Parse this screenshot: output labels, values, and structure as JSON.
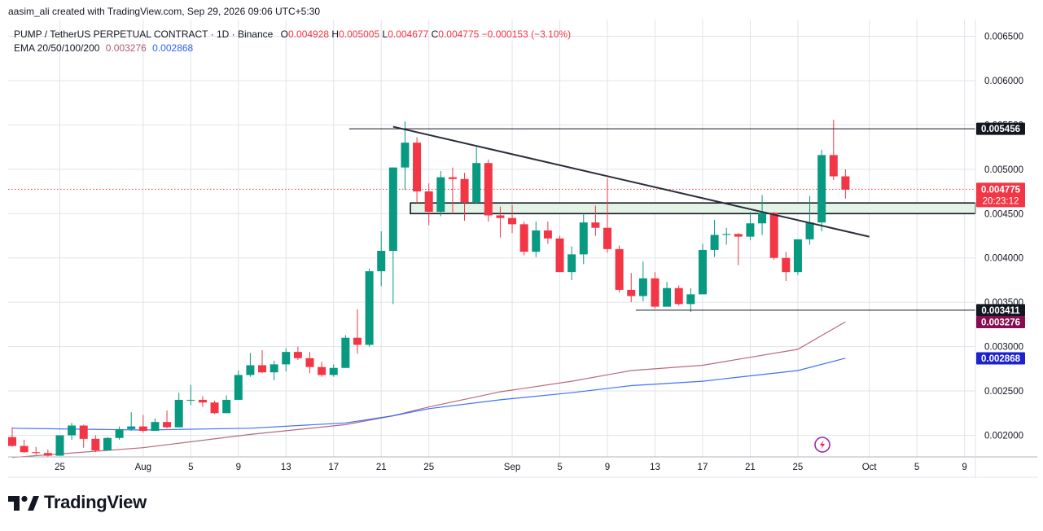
{
  "colors": {
    "up": "#089981",
    "down": "#f23645",
    "ema50": "#2962ff",
    "ema200": "#b05a6d",
    "grid": "#e0e3eb",
    "text": "#131722",
    "zone_fill": "#e3f4e6",
    "resistance_label_bg": "#131722",
    "last_price_bg": "#f23645",
    "ema200_label_bg": "#880e4f",
    "ema50_label_bg": "#1e22cc"
  },
  "header": {
    "attribution": "aasim_ali created with TradingView.com, Sep 29, 2026 09:06 UTC+5:30",
    "symbol": "PUMP / TetherUS PERPETUAL CONTRACT · 1D · Binance",
    "ohlc": [
      {
        "k": "O",
        "v": "0.004928"
      },
      {
        "k": "H",
        "v": "0.005005"
      },
      {
        "k": "L",
        "v": "0.004677"
      },
      {
        "k": "C",
        "v": "0.004775"
      }
    ],
    "change": "−0.000153 (−3.10%)",
    "indicator": "EMA 20/50/100/200",
    "ema_values": [
      {
        "v": "0.003276",
        "color": "#b05a6d"
      },
      {
        "v": "0.002868",
        "color": "#2962ff"
      }
    ]
  },
  "brand": {
    "name": "TradingView",
    "logo_icon": "tradingview-logo-icon"
  },
  "chart_data": {
    "type": "candlestick",
    "interval": "1D",
    "y_axis": {
      "ticks": [
        "0.006500",
        "0.006000",
        "0.005500",
        "0.005000",
        "0.004500",
        "0.004000",
        "0.003500",
        "0.003000",
        "0.002500",
        "0.002000"
      ],
      "range": [
        0.00175,
        0.0066
      ]
    },
    "x_axis": {
      "labels": [
        "25",
        "Aug",
        "5",
        "9",
        "13",
        "17",
        "21",
        "25",
        "Sep",
        "5",
        "9",
        "13",
        "17",
        "21",
        "25",
        "Oct",
        "5",
        "9"
      ],
      "label_dates": [
        "2026-07-25",
        "2026-08-01",
        "2026-08-05",
        "2026-08-09",
        "2026-08-13",
        "2026-08-17",
        "2026-08-21",
        "2026-08-25",
        "2026-09-01",
        "2026-09-05",
        "2026-09-09",
        "2026-09-13",
        "2026-09-17",
        "2026-09-21",
        "2026-09-25",
        "2026-10-01",
        "2026-10-05",
        "2026-10-09"
      ],
      "start_date": "2026-07-21",
      "end_date": "2026-10-12"
    },
    "candles": [
      {
        "d": "2026-07-21",
        "o": 0.00198,
        "h": 0.00209,
        "l": 0.00187,
        "c": 0.00188
      },
      {
        "d": "2026-07-22",
        "o": 0.00188,
        "h": 0.00195,
        "l": 0.0018,
        "c": 0.00181
      },
      {
        "d": "2026-07-23",
        "o": 0.00181,
        "h": 0.00187,
        "l": 0.00178,
        "c": 0.0018
      },
      {
        "d": "2026-07-24",
        "o": 0.0018,
        "h": 0.00184,
        "l": 0.00176,
        "c": 0.00177
      },
      {
        "d": "2026-07-25",
        "o": 0.00177,
        "h": 0.002,
        "l": 0.00177,
        "c": 0.002
      },
      {
        "d": "2026-07-26",
        "o": 0.002,
        "h": 0.00214,
        "l": 0.00195,
        "c": 0.00211
      },
      {
        "d": "2026-07-27",
        "o": 0.00211,
        "h": 0.00212,
        "l": 0.00186,
        "c": 0.00196
      },
      {
        "d": "2026-07-28",
        "o": 0.00196,
        "h": 0.002,
        "l": 0.00181,
        "c": 0.00183
      },
      {
        "d": "2026-07-29",
        "o": 0.00183,
        "h": 0.00198,
        "l": 0.00183,
        "c": 0.00197
      },
      {
        "d": "2026-07-30",
        "o": 0.00197,
        "h": 0.0021,
        "l": 0.00195,
        "c": 0.00207
      },
      {
        "d": "2026-07-31",
        "o": 0.00207,
        "h": 0.00226,
        "l": 0.00205,
        "c": 0.0021
      },
      {
        "d": "2026-08-01",
        "o": 0.0021,
        "h": 0.00223,
        "l": 0.00203,
        "c": 0.00205
      },
      {
        "d": "2026-08-02",
        "o": 0.00205,
        "h": 0.00219,
        "l": 0.00205,
        "c": 0.00215
      },
      {
        "d": "2026-08-03",
        "o": 0.00215,
        "h": 0.00228,
        "l": 0.00208,
        "c": 0.00209
      },
      {
        "d": "2026-08-04",
        "o": 0.00209,
        "h": 0.00248,
        "l": 0.00209,
        "c": 0.0024
      },
      {
        "d": "2026-08-05",
        "o": 0.0024,
        "h": 0.00257,
        "l": 0.00234,
        "c": 0.0024
      },
      {
        "d": "2026-08-06",
        "o": 0.0024,
        "h": 0.00244,
        "l": 0.00232,
        "c": 0.00237
      },
      {
        "d": "2026-08-07",
        "o": 0.00237,
        "h": 0.00239,
        "l": 0.00224,
        "c": 0.00225
      },
      {
        "d": "2026-08-08",
        "o": 0.00225,
        "h": 0.00245,
        "l": 0.00225,
        "c": 0.0024
      },
      {
        "d": "2026-08-09",
        "o": 0.0024,
        "h": 0.00273,
        "l": 0.0024,
        "c": 0.00268
      },
      {
        "d": "2026-08-10",
        "o": 0.00268,
        "h": 0.00293,
        "l": 0.00266,
        "c": 0.00279
      },
      {
        "d": "2026-08-11",
        "o": 0.00279,
        "h": 0.00296,
        "l": 0.0027,
        "c": 0.00271
      },
      {
        "d": "2026-08-12",
        "o": 0.00271,
        "h": 0.00284,
        "l": 0.00262,
        "c": 0.0028
      },
      {
        "d": "2026-08-13",
        "o": 0.0028,
        "h": 0.00298,
        "l": 0.00272,
        "c": 0.00294
      },
      {
        "d": "2026-08-14",
        "o": 0.00294,
        "h": 0.003,
        "l": 0.00285,
        "c": 0.00287
      },
      {
        "d": "2026-08-15",
        "o": 0.00287,
        "h": 0.00294,
        "l": 0.0027,
        "c": 0.00277
      },
      {
        "d": "2026-08-16",
        "o": 0.00277,
        "h": 0.00283,
        "l": 0.00266,
        "c": 0.00268
      },
      {
        "d": "2026-08-17",
        "o": 0.00268,
        "h": 0.0028,
        "l": 0.00266,
        "c": 0.00276
      },
      {
        "d": "2026-08-18",
        "o": 0.00276,
        "h": 0.00313,
        "l": 0.00276,
        "c": 0.0031
      },
      {
        "d": "2026-08-19",
        "o": 0.0031,
        "h": 0.00342,
        "l": 0.00292,
        "c": 0.00302
      },
      {
        "d": "2026-08-20",
        "o": 0.00302,
        "h": 0.00388,
        "l": 0.003,
        "c": 0.00385
      },
      {
        "d": "2026-08-21",
        "o": 0.00385,
        "h": 0.0043,
        "l": 0.00368,
        "c": 0.00408
      },
      {
        "d": "2026-08-22",
        "o": 0.00408,
        "h": 0.00502,
        "l": 0.00348,
        "c": 0.00502
      },
      {
        "d": "2026-08-23",
        "o": 0.00502,
        "h": 0.00554,
        "l": 0.00477,
        "c": 0.0053
      },
      {
        "d": "2026-08-24",
        "o": 0.0053,
        "h": 0.00536,
        "l": 0.00462,
        "c": 0.00475
      },
      {
        "d": "2026-08-25",
        "o": 0.00475,
        "h": 0.00484,
        "l": 0.00437,
        "c": 0.00452
      },
      {
        "d": "2026-08-26",
        "o": 0.00452,
        "h": 0.00498,
        "l": 0.00447,
        "c": 0.00491
      },
      {
        "d": "2026-08-27",
        "o": 0.00491,
        "h": 0.00502,
        "l": 0.00449,
        "c": 0.00489
      },
      {
        "d": "2026-08-28",
        "o": 0.00489,
        "h": 0.00496,
        "l": 0.00442,
        "c": 0.00463
      },
      {
        "d": "2026-08-29",
        "o": 0.00463,
        "h": 0.00525,
        "l": 0.00461,
        "c": 0.00507
      },
      {
        "d": "2026-08-30",
        "o": 0.00507,
        "h": 0.00511,
        "l": 0.00441,
        "c": 0.00448
      },
      {
        "d": "2026-08-31",
        "o": 0.00448,
        "h": 0.00458,
        "l": 0.00423,
        "c": 0.00445
      },
      {
        "d": "2026-09-01",
        "o": 0.00445,
        "h": 0.0046,
        "l": 0.00428,
        "c": 0.00438
      },
      {
        "d": "2026-09-02",
        "o": 0.00438,
        "h": 0.00441,
        "l": 0.00403,
        "c": 0.00407
      },
      {
        "d": "2026-09-03",
        "o": 0.00407,
        "h": 0.00441,
        "l": 0.00401,
        "c": 0.00431
      },
      {
        "d": "2026-09-04",
        "o": 0.00431,
        "h": 0.00441,
        "l": 0.00416,
        "c": 0.00422
      },
      {
        "d": "2026-09-05",
        "o": 0.00422,
        "h": 0.00425,
        "l": 0.00384,
        "c": 0.00384
      },
      {
        "d": "2026-09-06",
        "o": 0.00384,
        "h": 0.00413,
        "l": 0.00375,
        "c": 0.00404
      },
      {
        "d": "2026-09-07",
        "o": 0.00404,
        "h": 0.0045,
        "l": 0.00393,
        "c": 0.0044
      },
      {
        "d": "2026-09-08",
        "o": 0.0044,
        "h": 0.00459,
        "l": 0.00425,
        "c": 0.00434
      },
      {
        "d": "2026-09-09",
        "o": 0.00434,
        "h": 0.0049,
        "l": 0.00406,
        "c": 0.0041
      },
      {
        "d": "2026-09-10",
        "o": 0.0041,
        "h": 0.00414,
        "l": 0.00361,
        "c": 0.00364
      },
      {
        "d": "2026-09-11",
        "o": 0.00364,
        "h": 0.00383,
        "l": 0.0035,
        "c": 0.00357
      },
      {
        "d": "2026-09-12",
        "o": 0.00357,
        "h": 0.00396,
        "l": 0.00351,
        "c": 0.00377
      },
      {
        "d": "2026-09-13",
        "o": 0.00377,
        "h": 0.00384,
        "l": 0.00343,
        "c": 0.00345
      },
      {
        "d": "2026-09-14",
        "o": 0.00345,
        "h": 0.00373,
        "l": 0.00345,
        "c": 0.00366
      },
      {
        "d": "2026-09-15",
        "o": 0.00366,
        "h": 0.00369,
        "l": 0.00346,
        "c": 0.00348
      },
      {
        "d": "2026-09-16",
        "o": 0.00348,
        "h": 0.00366,
        "l": 0.00339,
        "c": 0.00359
      },
      {
        "d": "2026-09-17",
        "o": 0.00359,
        "h": 0.00416,
        "l": 0.00359,
        "c": 0.00409
      },
      {
        "d": "2026-09-18",
        "o": 0.00409,
        "h": 0.00443,
        "l": 0.00401,
        "c": 0.00426
      },
      {
        "d": "2026-09-19",
        "o": 0.00426,
        "h": 0.00434,
        "l": 0.00415,
        "c": 0.00427
      },
      {
        "d": "2026-09-20",
        "o": 0.00427,
        "h": 0.00428,
        "l": 0.00392,
        "c": 0.00424
      },
      {
        "d": "2026-09-21",
        "o": 0.00424,
        "h": 0.00452,
        "l": 0.0042,
        "c": 0.00439
      },
      {
        "d": "2026-09-22",
        "o": 0.00439,
        "h": 0.00471,
        "l": 0.00426,
        "c": 0.00451
      },
      {
        "d": "2026-09-23",
        "o": 0.00451,
        "h": 0.00452,
        "l": 0.00398,
        "c": 0.004
      },
      {
        "d": "2026-09-24",
        "o": 0.004,
        "h": 0.00407,
        "l": 0.00374,
        "c": 0.00384
      },
      {
        "d": "2026-09-25",
        "o": 0.00384,
        "h": 0.00421,
        "l": 0.00381,
        "c": 0.00421
      },
      {
        "d": "2026-09-26",
        "o": 0.00421,
        "h": 0.0047,
        "l": 0.00415,
        "c": 0.0044
      },
      {
        "d": "2026-09-27",
        "o": 0.0044,
        "h": 0.00522,
        "l": 0.0043,
        "c": 0.00516
      },
      {
        "d": "2026-09-28",
        "o": 0.00516,
        "h": 0.00556,
        "l": 0.00488,
        "c": 0.00492
      },
      {
        "d": "2026-09-29",
        "o": 0.00492,
        "h": 0.005,
        "l": 0.00467,
        "c": 0.00477
      }
    ],
    "series": [
      {
        "name": "EMA 200",
        "color": "#b05a6d",
        "points": [
          [
            "2026-07-21",
            0.00175
          ],
          [
            "2026-08-01",
            0.00186
          ],
          [
            "2026-08-10",
            0.00201
          ],
          [
            "2026-08-18",
            0.00212
          ],
          [
            "2026-08-22",
            0.00222
          ],
          [
            "2026-08-25",
            0.00232
          ],
          [
            "2026-08-31",
            0.00249
          ],
          [
            "2026-09-06",
            0.00261
          ],
          [
            "2026-09-11",
            0.00273
          ],
          [
            "2026-09-17",
            0.00279
          ],
          [
            "2026-09-21",
            0.00288
          ],
          [
            "2026-09-25",
            0.00297
          ],
          [
            "2026-09-29",
            0.00328
          ]
        ]
      },
      {
        "name": "EMA 100",
        "color": "#2962ff",
        "points": [
          [
            "2026-07-21",
            0.00208
          ],
          [
            "2026-08-01",
            0.00206
          ],
          [
            "2026-08-10",
            0.00208
          ],
          [
            "2026-08-18",
            0.00214
          ],
          [
            "2026-08-22",
            0.00222
          ],
          [
            "2026-08-25",
            0.0023
          ],
          [
            "2026-08-31",
            0.0024
          ],
          [
            "2026-09-06",
            0.00248
          ],
          [
            "2026-09-11",
            0.00256
          ],
          [
            "2026-09-17",
            0.00261
          ],
          [
            "2026-09-21",
            0.00267
          ],
          [
            "2026-09-25",
            0.00273
          ],
          [
            "2026-09-29",
            0.00287
          ]
        ]
      }
    ],
    "drawings": {
      "trendline": {
        "from": [
          "2026-08-22",
          0.00548
        ],
        "to": [
          "2026-10-01",
          0.00424
        ]
      },
      "resistance": {
        "price": 0.005456,
        "from": "2026-08-19",
        "label": "0.005456"
      },
      "support": {
        "price": 0.003411,
        "from": "2026-09-12",
        "label": "0.003411"
      },
      "zone": {
        "from": "2026-08-24",
        "top": 0.00462,
        "bottom": 0.0045
      }
    },
    "price_labels": [
      {
        "id": "resistance",
        "price": 0.005456,
        "text": "0.005456",
        "bg": "#131722"
      },
      {
        "id": "last-price",
        "price": 0.004775,
        "text": "0.004775",
        "countdown": "20:23:12",
        "bg": "#f23645"
      },
      {
        "id": "support",
        "price": 0.003411,
        "text": "0.003411",
        "bg": "#131722"
      },
      {
        "id": "ema200",
        "price": 0.003276,
        "text": "0.003276",
        "bg": "#880e4f"
      },
      {
        "id": "ema100",
        "price": 0.002868,
        "text": "0.002868",
        "bg": "#1e22cc"
      }
    ],
    "last_price": 0.004775
  }
}
